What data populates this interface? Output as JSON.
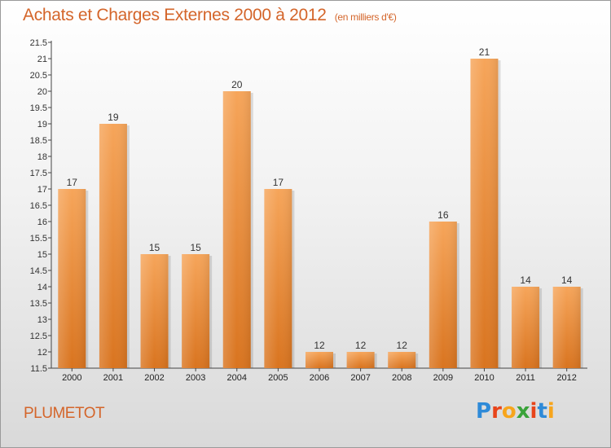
{
  "header": {
    "title": "Achats et Charges Externes 2000 à 2012",
    "subtitle": "(en milliers d'€)"
  },
  "footer": {
    "town": "PLUMETOT",
    "logo": "Proxiti"
  },
  "colors": {
    "title": "#d4652a",
    "bar_top": "#f6a55a",
    "bar_bottom": "#d9741f",
    "logo_letters": [
      "#2e8ad8",
      "#e8441a",
      "#f7a51c",
      "#3aa33a",
      "#e8441a",
      "#2e8ad8",
      "#f7a51c"
    ]
  },
  "chart_data": {
    "type": "bar",
    "categories": [
      "2000",
      "2001",
      "2002",
      "2003",
      "2004",
      "2005",
      "2006",
      "2007",
      "2008",
      "2009",
      "2010",
      "2011",
      "2012"
    ],
    "values": [
      17,
      19,
      15,
      15,
      20,
      17,
      12,
      12,
      12,
      16,
      21,
      14,
      14
    ],
    "data_labels": [
      "17",
      "19",
      "15",
      "15",
      "20",
      "17",
      "12",
      "12",
      "12",
      "16",
      "21",
      "14",
      "14"
    ],
    "yticks": [
      "11.5",
      "12",
      "12.5",
      "13",
      "13.5",
      "14",
      "14.5",
      "15",
      "15.5",
      "16",
      "16.5",
      "17",
      "17.5",
      "18",
      "18.5",
      "19",
      "19.5",
      "20",
      "20.5",
      "21",
      "21.5"
    ],
    "ylim": [
      11.5,
      21.5
    ],
    "title": "Achats et Charges Externes 2000 à 2012",
    "xlabel": "",
    "ylabel": "",
    "grid": false,
    "legend": "none"
  }
}
